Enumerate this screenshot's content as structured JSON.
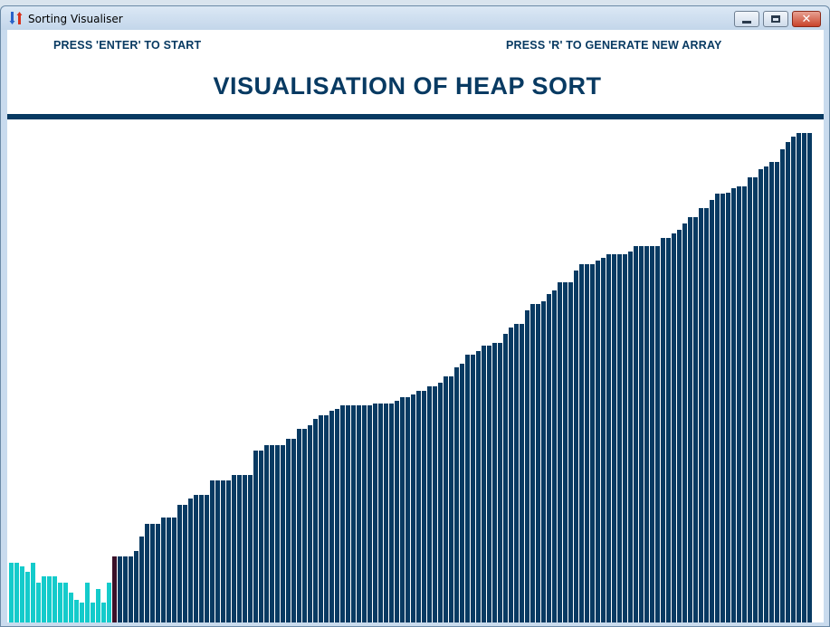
{
  "window": {
    "title": "Sorting Visualiser",
    "icon": "sort-arrows-icon",
    "controls": [
      "minimize-icon",
      "maximize-icon",
      "close-icon"
    ],
    "close_glyph": "✕"
  },
  "hints": {
    "start": "PRESS 'ENTER' TO START",
    "regenerate": "PRESS 'R' TO GENERATE NEW ARRAY"
  },
  "heading": "VISUALISATION OF HEAP SORT",
  "colors": {
    "sorted": "#083a62",
    "unsorted": "#14cbcb",
    "active": "#3a1028",
    "text": "#083a62"
  },
  "chart_data": {
    "type": "bar",
    "values": [
      66,
      66,
      62,
      56,
      66,
      44,
      51,
      51,
      51,
      44,
      44,
      33,
      25,
      22,
      44,
      22,
      37,
      22,
      44,
      73,
      73,
      73,
      73,
      79,
      95,
      109,
      109,
      109,
      116,
      116,
      116,
      130,
      130,
      137,
      141,
      141,
      141,
      157,
      157,
      157,
      157,
      163,
      163,
      163,
      163,
      190,
      190,
      196,
      196,
      196,
      196,
      203,
      203,
      214,
      214,
      218,
      225,
      229,
      229,
      234,
      236,
      240,
      240,
      240,
      240,
      240,
      240,
      242,
      242,
      242,
      242,
      245,
      249,
      249,
      252,
      256,
      256,
      261,
      261,
      265,
      272,
      272,
      282,
      286,
      296,
      296,
      300,
      306,
      306,
      309,
      309,
      319,
      326,
      330,
      330,
      345,
      352,
      352,
      355,
      363,
      367,
      376,
      376,
      376,
      389,
      396,
      396,
      396,
      400,
      403,
      407,
      407,
      407,
      407,
      410,
      416,
      416,
      416,
      416,
      416,
      425,
      425,
      430,
      434,
      441,
      448,
      448,
      458,
      458,
      467,
      474,
      474,
      475,
      480,
      482,
      482,
      492,
      492,
      501,
      504,
      509,
      509,
      523,
      531,
      537,
      541,
      541,
      541
    ],
    "statuses": [
      "unsorted",
      "unsorted",
      "unsorted",
      "unsorted",
      "unsorted",
      "unsorted",
      "unsorted",
      "unsorted",
      "unsorted",
      "unsorted",
      "unsorted",
      "unsorted",
      "unsorted",
      "unsorted",
      "unsorted",
      "unsorted",
      "unsorted",
      "unsorted",
      "unsorted",
      "active",
      "sorted",
      "sorted",
      "sorted",
      "sorted",
      "sorted",
      "sorted",
      "sorted",
      "sorted",
      "sorted",
      "sorted",
      "sorted",
      "sorted",
      "sorted",
      "sorted",
      "sorted",
      "sorted",
      "sorted",
      "sorted",
      "sorted",
      "sorted",
      "sorted",
      "sorted",
      "sorted",
      "sorted",
      "sorted",
      "sorted",
      "sorted",
      "sorted",
      "sorted",
      "sorted",
      "sorted",
      "sorted",
      "sorted",
      "sorted",
      "sorted",
      "sorted",
      "sorted",
      "sorted",
      "sorted",
      "sorted",
      "sorted",
      "sorted",
      "sorted",
      "sorted",
      "sorted",
      "sorted",
      "sorted",
      "sorted",
      "sorted",
      "sorted",
      "sorted",
      "sorted",
      "sorted",
      "sorted",
      "sorted",
      "sorted",
      "sorted",
      "sorted",
      "sorted",
      "sorted",
      "sorted",
      "sorted",
      "sorted",
      "sorted",
      "sorted",
      "sorted",
      "sorted",
      "sorted",
      "sorted",
      "sorted",
      "sorted",
      "sorted",
      "sorted",
      "sorted",
      "sorted",
      "sorted",
      "sorted",
      "sorted",
      "sorted",
      "sorted",
      "sorted",
      "sorted",
      "sorted",
      "sorted",
      "sorted",
      "sorted",
      "sorted",
      "sorted",
      "sorted",
      "sorted",
      "sorted",
      "sorted",
      "sorted",
      "sorted",
      "sorted",
      "sorted",
      "sorted",
      "sorted",
      "sorted",
      "sorted",
      "sorted",
      "sorted",
      "sorted",
      "sorted",
      "sorted",
      "sorted",
      "sorted",
      "sorted",
      "sorted",
      "sorted",
      "sorted",
      "sorted",
      "sorted",
      "sorted",
      "sorted",
      "sorted",
      "sorted",
      "sorted",
      "sorted",
      "sorted",
      "sorted",
      "sorted",
      "sorted",
      "sorted",
      "sorted",
      "sorted",
      "sorted",
      "sorted"
    ],
    "ylim": [
      0,
      545
    ]
  }
}
